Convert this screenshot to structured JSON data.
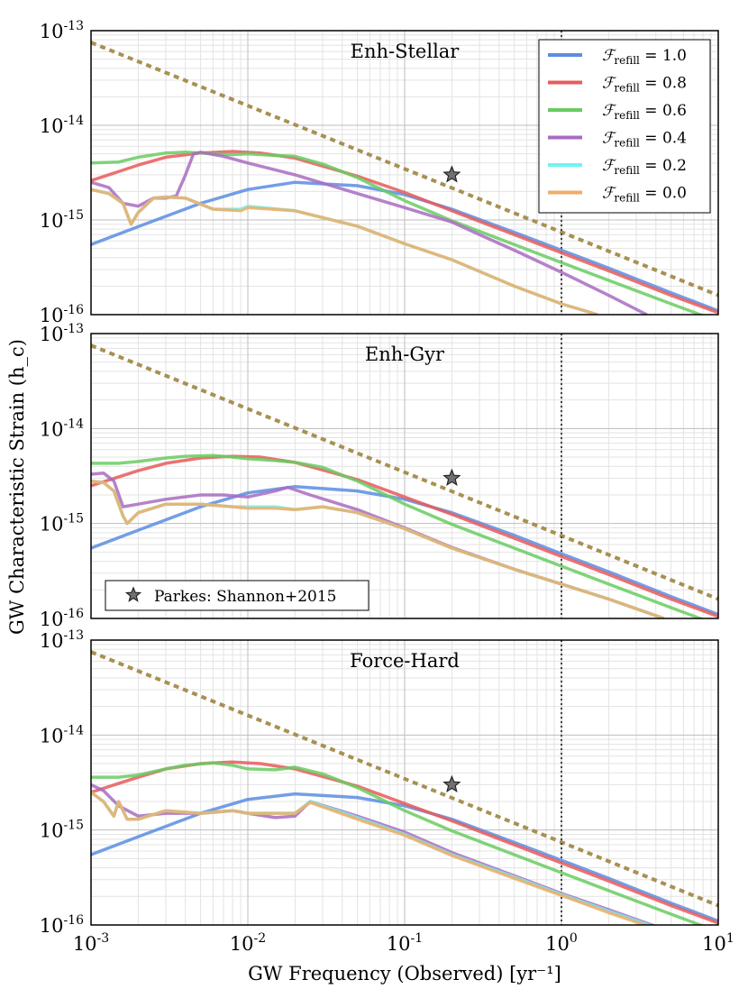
{
  "figure": {
    "xlabel": "GW Frequency (Observed) [yr⁻¹]",
    "ylabel": "GW Characteristic Strain (h_c)"
  },
  "chart_data": [
    {
      "type": "line",
      "title": "Enh-Stellar",
      "xscale": "log",
      "yscale": "log",
      "xlim": [
        0.001,
        10
      ],
      "ylim": [
        1e-16,
        1e-13
      ],
      "x_tick_labels": [
        "10^-3",
        "10^-2",
        "10^-1",
        "10^0",
        "10^1"
      ],
      "y_tick_labels": [
        "10^-16",
        "10^-15",
        "10^-14",
        "10^-13"
      ],
      "grid": true,
      "vline_x": 1.0,
      "legend_position": "top-right",
      "legend": [
        {
          "name": "F_refill = 1.0",
          "color": "#5b8de2"
        },
        {
          "name": "F_refill = 0.8",
          "color": "#e85b5b"
        },
        {
          "name": "F_refill = 0.6",
          "color": "#6acb62"
        },
        {
          "name": "F_refill = 0.4",
          "color": "#a86cc1"
        },
        {
          "name": "F_refill = 0.2",
          "color": "#6ff3f3"
        },
        {
          "name": "F_refill = 0.0",
          "color": "#efad66"
        }
      ],
      "reference_line": {
        "name": "power-law reference",
        "color": "#a89052",
        "x": [
          0.001,
          10
        ],
        "y": [
          7.5e-14,
          1.6e-16
        ]
      },
      "marker": {
        "name": "Parkes: Shannon+2015",
        "x": 0.2,
        "y": 3e-15
      },
      "series": [
        {
          "name": "F_refill = 1.0",
          "color": "#5b8de2",
          "x": [
            0.001,
            0.002,
            0.005,
            0.01,
            0.02,
            0.05,
            0.1,
            0.2,
            0.5,
            1,
            2,
            5,
            10
          ],
          "y": [
            5.5e-16,
            8.5e-16,
            1.5e-15,
            2.1e-15,
            2.5e-15,
            2.3e-15,
            1.85e-15,
            1.3e-15,
            7.4e-16,
            4.8e-16,
            3.1e-16,
            1.7e-16,
            1.1e-16
          ]
        },
        {
          "name": "F_refill = 0.8",
          "color": "#e85b5b",
          "x": [
            0.001,
            0.002,
            0.003,
            0.005,
            0.008,
            0.012,
            0.02,
            0.05,
            0.1,
            0.2,
            0.5,
            1,
            2,
            5,
            10
          ],
          "y": [
            2.6e-15,
            3.8e-15,
            4.6e-15,
            5.1e-15,
            5.3e-15,
            5.1e-15,
            4.5e-15,
            2.9e-15,
            1.95e-15,
            1.25e-15,
            7e-16,
            4.5e-16,
            2.9e-16,
            1.6e-16,
            1.05e-16
          ]
        },
        {
          "name": "F_refill = 0.6",
          "color": "#6acb62",
          "x": [
            0.001,
            0.0015,
            0.002,
            0.003,
            0.004,
            0.006,
            0.008,
            0.01,
            0.015,
            0.02,
            0.03,
            0.05,
            0.1,
            0.2,
            0.5,
            1,
            2,
            5,
            10
          ],
          "y": [
            4e-15,
            4.1e-15,
            4.6e-15,
            5.1e-15,
            5.2e-15,
            5e-15,
            4.9e-15,
            5e-15,
            4.8e-15,
            4.7e-15,
            3.9e-15,
            2.8e-15,
            1.6e-15,
            9.8e-16,
            5.5e-16,
            3.55e-16,
            2.3e-16,
            1.3e-16,
            8.5e-17
          ]
        },
        {
          "name": "F_refill = 0.4",
          "color": "#a86cc1",
          "x": [
            0.001,
            0.0013,
            0.0016,
            0.002,
            0.0025,
            0.003,
            0.0035,
            0.004,
            0.0045,
            0.005,
            0.007,
            0.01,
            0.02,
            0.05,
            0.1,
            0.2,
            0.3,
            0.5,
            1,
            2,
            3.5
          ],
          "y": [
            2.5e-15,
            2.2e-15,
            1.5e-15,
            1.4e-15,
            1.7e-15,
            1.7e-15,
            1.8e-15,
            3e-15,
            5e-15,
            5.2e-15,
            4.7e-15,
            4e-15,
            3e-15,
            1.9e-15,
            1.35e-15,
            9.5e-16,
            7e-16,
            4.8e-16,
            2.8e-16,
            1.6e-16,
            1e-16
          ]
        },
        {
          "name": "F_refill = 0.2",
          "color": "#6ff3f3",
          "x": [
            0.001,
            0.0013,
            0.0016,
            0.0018,
            0.002,
            0.0025,
            0.003,
            0.004,
            0.006,
            0.009,
            0.01,
            0.02,
            0.05,
            0.1,
            0.2,
            0.5,
            1,
            1.7
          ],
          "y": [
            2.1e-15,
            1.9e-15,
            1.5e-15,
            9e-16,
            1.2e-15,
            1.7e-15,
            1.75e-15,
            1.7e-15,
            1.3e-15,
            1.3e-15,
            1.4e-15,
            1.25e-15,
            8.6e-16,
            5.6e-16,
            3.8e-16,
            2e-16,
            1.3e-16,
            1e-16
          ]
        },
        {
          "name": "F_refill = 0.0",
          "color": "#efad66",
          "x": [
            0.001,
            0.0013,
            0.0016,
            0.0018,
            0.002,
            0.0025,
            0.003,
            0.004,
            0.006,
            0.009,
            0.01,
            0.02,
            0.05,
            0.1,
            0.2,
            0.5,
            1,
            1.7
          ],
          "y": [
            2.1e-15,
            1.9e-15,
            1.5e-15,
            9e-16,
            1.2e-15,
            1.7e-15,
            1.75e-15,
            1.7e-15,
            1.3e-15,
            1.25e-15,
            1.35e-15,
            1.25e-15,
            8.6e-16,
            5.6e-16,
            3.8e-16,
            2e-16,
            1.3e-16,
            1e-16
          ]
        }
      ]
    },
    {
      "type": "line",
      "title": "Enh-Gyr",
      "xscale": "log",
      "yscale": "log",
      "xlim": [
        0.001,
        10
      ],
      "ylim": [
        1e-16,
        1e-13
      ],
      "x_tick_labels": [
        "10^-3",
        "10^-2",
        "10^-1",
        "10^0",
        "10^1"
      ],
      "y_tick_labels": [
        "10^-16",
        "10^-15",
        "10^-14",
        "10^-13"
      ],
      "grid": true,
      "vline_x": 1.0,
      "legend_position": "bottom-left",
      "legend": [
        {
          "name": "Parkes: Shannon+2015",
          "color": "#555555"
        }
      ],
      "reference_line": {
        "name": "power-law reference",
        "color": "#a89052",
        "x": [
          0.001,
          10
        ],
        "y": [
          7.5e-14,
          1.6e-16
        ]
      },
      "marker": {
        "name": "Parkes: Shannon+2015",
        "x": 0.2,
        "y": 3e-15
      },
      "series": [
        {
          "name": "F_refill = 1.0",
          "color": "#5b8de2",
          "x": [
            0.001,
            0.002,
            0.005,
            0.01,
            0.02,
            0.05,
            0.1,
            0.2,
            0.5,
            1,
            2,
            5,
            10
          ],
          "y": [
            5.5e-16,
            8.5e-16,
            1.5e-15,
            2.1e-15,
            2.45e-15,
            2.2e-15,
            1.8e-15,
            1.3e-15,
            7.5e-16,
            4.8e-16,
            3.1e-16,
            1.7e-16,
            1.1e-16
          ]
        },
        {
          "name": "F_refill = 0.8",
          "color": "#e85b5b",
          "x": [
            0.001,
            0.002,
            0.003,
            0.005,
            0.008,
            0.012,
            0.02,
            0.05,
            0.1,
            0.2,
            0.5,
            1,
            2,
            5,
            10
          ],
          "y": [
            2.5e-15,
            3.6e-15,
            4.3e-15,
            4.9e-15,
            5.1e-15,
            5e-15,
            4.4e-15,
            2.9e-15,
            1.9e-15,
            1.25e-15,
            7e-16,
            4.5e-16,
            2.9e-16,
            1.6e-16,
            1.05e-16
          ]
        },
        {
          "name": "F_refill = 0.6",
          "color": "#6acb62",
          "x": [
            0.001,
            0.0015,
            0.002,
            0.003,
            0.004,
            0.006,
            0.008,
            0.01,
            0.015,
            0.02,
            0.03,
            0.05,
            0.1,
            0.2,
            0.5,
            1,
            2,
            5,
            10
          ],
          "y": [
            4.3e-15,
            4.3e-15,
            4.5e-15,
            4.9e-15,
            5.1e-15,
            5.2e-15,
            5e-15,
            4.8e-15,
            4.6e-15,
            4.4e-15,
            3.9e-15,
            2.8e-15,
            1.6e-15,
            9.8e-16,
            5.5e-16,
            3.55e-16,
            2.3e-16,
            1.3e-16,
            8.5e-17
          ]
        },
        {
          "name": "F_refill = 0.4",
          "color": "#a86cc1",
          "x": [
            0.001,
            0.0012,
            0.0014,
            0.0016,
            0.002,
            0.003,
            0.005,
            0.007,
            0.01,
            0.015,
            0.018,
            0.025,
            0.05,
            0.1,
            0.2,
            0.5,
            1,
            2,
            4.5
          ],
          "y": [
            3.3e-15,
            3.4e-15,
            2.8e-15,
            1.5e-15,
            1.6e-15,
            1.8e-15,
            2e-15,
            2e-15,
            1.9e-15,
            2.2e-15,
            2.4e-15,
            2e-15,
            1.4e-15,
            9e-16,
            5.6e-16,
            3.3e-16,
            2.3e-16,
            1.6e-16,
            1e-16
          ]
        },
        {
          "name": "F_refill = 0.2",
          "color": "#6ff3f3",
          "x": [
            0.001,
            0.0012,
            0.0014,
            0.0016,
            0.0017,
            0.002,
            0.003,
            0.005,
            0.008,
            0.01,
            0.015,
            0.02,
            0.03,
            0.05,
            0.1,
            0.2,
            0.5,
            1,
            2,
            4.5
          ],
          "y": [
            2.8e-15,
            2.7e-15,
            2.2e-15,
            1.2e-15,
            1e-15,
            1.3e-15,
            1.6e-15,
            1.6e-15,
            1.5e-15,
            1.5e-15,
            1.5e-15,
            1.4e-15,
            1.5e-15,
            1.3e-15,
            8.8e-16,
            5.5e-16,
            3.3e-16,
            2.3e-16,
            1.6e-16,
            1e-16
          ]
        },
        {
          "name": "F_refill = 0.0",
          "color": "#efad66",
          "x": [
            0.001,
            0.0012,
            0.0014,
            0.0016,
            0.0017,
            0.002,
            0.003,
            0.005,
            0.008,
            0.01,
            0.015,
            0.02,
            0.03,
            0.05,
            0.1,
            0.2,
            0.5,
            1,
            2,
            4.5
          ],
          "y": [
            2.8e-15,
            2.7e-15,
            2.2e-15,
            1.2e-15,
            1e-15,
            1.3e-15,
            1.6e-15,
            1.6e-15,
            1.5e-15,
            1.45e-15,
            1.45e-15,
            1.4e-15,
            1.5e-15,
            1.3e-15,
            8.8e-16,
            5.5e-16,
            3.3e-16,
            2.3e-16,
            1.6e-16,
            1e-16
          ]
        }
      ]
    },
    {
      "type": "line",
      "title": "Force-Hard",
      "xscale": "log",
      "yscale": "log",
      "xlim": [
        0.001,
        10
      ],
      "ylim": [
        1e-16,
        1e-13
      ],
      "x_tick_labels": [
        "10^-3",
        "10^-2",
        "10^-1",
        "10^0",
        "10^1"
      ],
      "y_tick_labels": [
        "10^-16",
        "10^-15",
        "10^-14",
        "10^-13"
      ],
      "grid": true,
      "vline_x": 1.0,
      "reference_line": {
        "name": "power-law reference",
        "color": "#a89052",
        "x": [
          0.001,
          10
        ],
        "y": [
          7.5e-14,
          1.6e-16
        ]
      },
      "marker": {
        "name": "Parkes: Shannon+2015",
        "x": 0.2,
        "y": 3e-15
      },
      "series": [
        {
          "name": "F_refill = 1.0",
          "color": "#5b8de2",
          "x": [
            0.001,
            0.002,
            0.005,
            0.01,
            0.02,
            0.05,
            0.1,
            0.2,
            0.5,
            1,
            2,
            5,
            10
          ],
          "y": [
            5.5e-16,
            8.5e-16,
            1.5e-15,
            2.1e-15,
            2.4e-15,
            2.2e-15,
            1.8e-15,
            1.3e-15,
            7.4e-16,
            4.8e-16,
            3.1e-16,
            1.7e-16,
            1.1e-16
          ]
        },
        {
          "name": "F_refill = 0.8",
          "color": "#e85b5b",
          "x": [
            0.001,
            0.002,
            0.003,
            0.005,
            0.008,
            0.012,
            0.02,
            0.05,
            0.1,
            0.2,
            0.5,
            1,
            2,
            5,
            10
          ],
          "y": [
            2.5e-15,
            3.6e-15,
            4.4e-15,
            5e-15,
            5.2e-15,
            5e-15,
            4.4e-15,
            2.9e-15,
            1.9e-15,
            1.25e-15,
            7e-16,
            4.5e-16,
            2.9e-16,
            1.6e-16,
            1.05e-16
          ]
        },
        {
          "name": "F_refill = 0.6",
          "color": "#6acb62",
          "x": [
            0.001,
            0.0015,
            0.002,
            0.003,
            0.004,
            0.006,
            0.008,
            0.01,
            0.015,
            0.02,
            0.03,
            0.05,
            0.1,
            0.2,
            0.5,
            1,
            2,
            5,
            10
          ],
          "y": [
            3.6e-15,
            3.6e-15,
            3.8e-15,
            4.4e-15,
            4.8e-15,
            5.1e-15,
            4.8e-15,
            4.4e-15,
            4.3e-15,
            4.6e-15,
            3.9e-15,
            2.8e-15,
            1.6e-15,
            9.8e-16,
            5.5e-16,
            3.55e-16,
            2.3e-16,
            1.3e-16,
            8.5e-17
          ]
        },
        {
          "name": "F_refill = 0.4",
          "color": "#a86cc1",
          "x": [
            0.001,
            0.0012,
            0.0015,
            0.002,
            0.003,
            0.005,
            0.008,
            0.01,
            0.015,
            0.02,
            0.025,
            0.05,
            0.1,
            0.2,
            0.5,
            1,
            2,
            4.5
          ],
          "y": [
            3e-15,
            2.6e-15,
            1.8e-15,
            1.4e-15,
            1.5e-15,
            1.5e-15,
            1.6e-15,
            1.5e-15,
            1.35e-15,
            1.4e-15,
            2e-15,
            1.4e-15,
            9.5e-16,
            5.8e-16,
            3.3e-16,
            2.15e-16,
            1.45e-16,
            9e-17
          ]
        },
        {
          "name": "F_refill = 0.2",
          "color": "#6ff3f3",
          "x": [
            0.001,
            0.0012,
            0.0014,
            0.0015,
            0.0017,
            0.002,
            0.003,
            0.005,
            0.008,
            0.01,
            0.015,
            0.02,
            0.025,
            0.05,
            0.1,
            0.2,
            0.5,
            1,
            2,
            4.5
          ],
          "y": [
            2.5e-15,
            2e-15,
            1.4e-15,
            2e-15,
            1.3e-15,
            1.3e-15,
            1.6e-15,
            1.5e-15,
            1.6e-15,
            1.5e-15,
            1.5e-15,
            1.5e-15,
            2e-15,
            1.35e-15,
            9e-16,
            5.5e-16,
            3.2e-16,
            2.1e-16,
            1.4e-16,
            8.8e-17
          ]
        },
        {
          "name": "F_refill = 0.0",
          "color": "#efad66",
          "x": [
            0.001,
            0.0012,
            0.0014,
            0.0015,
            0.0017,
            0.002,
            0.003,
            0.005,
            0.008,
            0.01,
            0.015,
            0.02,
            0.025,
            0.05,
            0.1,
            0.2,
            0.5,
            1,
            2,
            4.5
          ],
          "y": [
            2.5e-15,
            2e-15,
            1.4e-15,
            2e-15,
            1.3e-15,
            1.3e-15,
            1.6e-15,
            1.5e-15,
            1.6e-15,
            1.5e-15,
            1.5e-15,
            1.5e-15,
            1.95e-15,
            1.3e-15,
            8.8e-16,
            5.4e-16,
            3.1e-16,
            2.05e-16,
            1.35e-16,
            8.5e-17
          ]
        }
      ]
    }
  ]
}
